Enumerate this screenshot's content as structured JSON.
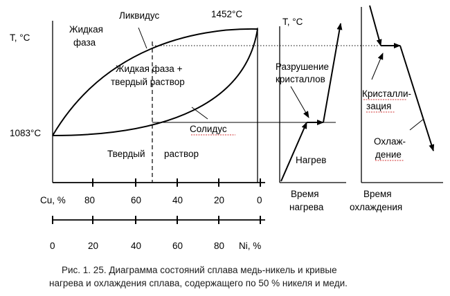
{
  "diagram": {
    "phase": {
      "y_axis_label": "T, °C",
      "liquid_phase_line1": "Жидкая",
      "liquid_phase_line2": "фаза",
      "liquidus": "Ликвидус",
      "ni_melting_point": "1452°C",
      "two_phase_line1": "Жидкая фаза +",
      "two_phase_line2": "твердый раствор",
      "solidus": "Солидус",
      "cu_melting_point": "1083°C",
      "solid_word1": "Твердый",
      "solid_word2": "раствор"
    },
    "axes": {
      "cu_label": "Cu, %",
      "cu_ticks": [
        "80",
        "60",
        "40",
        "20",
        "0"
      ],
      "ni_label": "Ni, %",
      "ni_ticks": [
        "0",
        "20",
        "40",
        "60",
        "80"
      ]
    },
    "heating": {
      "y_axis_label": "T, °C",
      "crystal_line1": "Разрушение",
      "crystal_line2": "кристаллов",
      "heating": "Нагрев",
      "x_label_line1": "Время",
      "x_label_line2": "нагрева"
    },
    "cooling": {
      "crystal_line1": "Кристалли-",
      "crystal_line2": "зация",
      "cooling_line1": "Охлаж-",
      "cooling_line2": "дение",
      "x_label_line1": "Время",
      "x_label_line2": "охлаждения"
    },
    "caption_line1": "Рис. 1. 25. Диаграмма состояний сплава медь-никель и кривые",
    "caption_line2": "нагрева и охлаждения сплава, содержащего по 50 % никеля  и меди."
  }
}
